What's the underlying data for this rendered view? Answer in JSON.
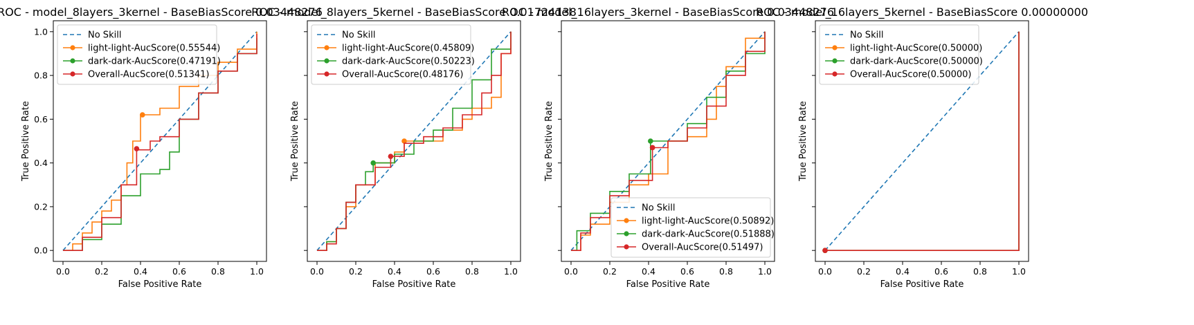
{
  "chart_data": [
    {
      "type": "line",
      "title": "ROC - model_8layers_3kernel - BaseBiasScore 0.03448276",
      "xlabel": "False Positive Rate",
      "ylabel": "True Positive Rate",
      "xlim": [
        -0.05,
        1.05
      ],
      "ylim": [
        -0.05,
        1.05
      ],
      "xticks": [
        "0.0",
        "0.2",
        "0.4",
        "0.6",
        "0.8",
        "1.0"
      ],
      "yticks": [
        "0.0",
        "0.2",
        "0.4",
        "0.6",
        "0.8",
        "1.0"
      ],
      "show_ytick_labels": true,
      "legend_position": "upper-left",
      "series": [
        {
          "name": "No Skill",
          "style": "dashed",
          "color": "#1f77b4",
          "x": [
            0,
            1
          ],
          "y": [
            0,
            1
          ]
        },
        {
          "name": "light-light-AucScore(0.55544)",
          "color": "#ff7f0e",
          "x": [
            0,
            0.05,
            0.1,
            0.15,
            0.2,
            0.25,
            0.3,
            0.33,
            0.36,
            0.4,
            0.5,
            0.6,
            0.7,
            0.8,
            0.9,
            1.0
          ],
          "y": [
            0,
            0.03,
            0.08,
            0.13,
            0.18,
            0.23,
            0.3,
            0.4,
            0.5,
            0.62,
            0.65,
            0.75,
            0.8,
            0.86,
            0.92,
            1.0
          ],
          "marker": {
            "x": 0.41,
            "y": 0.62
          }
        },
        {
          "name": "dark-dark-AucScore(0.47191)",
          "color": "#2ca02c",
          "x": [
            0,
            0.1,
            0.2,
            0.3,
            0.4,
            0.5,
            0.55,
            0.6,
            0.7,
            0.8,
            0.9,
            1.0
          ],
          "y": [
            0,
            0.05,
            0.12,
            0.25,
            0.35,
            0.37,
            0.45,
            0.6,
            0.72,
            0.82,
            0.9,
            0.97
          ],
          "marker": null
        },
        {
          "name": "Overall-AucScore(0.51341)",
          "color": "#d62728",
          "x": [
            0,
            0.1,
            0.2,
            0.3,
            0.38,
            0.45,
            0.5,
            0.6,
            0.7,
            0.8,
            0.9,
            1.0
          ],
          "y": [
            0,
            0.06,
            0.15,
            0.3,
            0.46,
            0.5,
            0.52,
            0.6,
            0.72,
            0.82,
            0.9,
            0.99
          ],
          "marker": {
            "x": 0.38,
            "y": 0.465
          }
        }
      ]
    },
    {
      "type": "line",
      "title": "ROC - model_8layers_5kernel - BaseBiasScore 0.01724138",
      "xlabel": "False Positive Rate",
      "ylabel": "True Positive Rate",
      "xlim": [
        -0.05,
        1.05
      ],
      "ylim": [
        -0.05,
        1.05
      ],
      "xticks": [
        "0.0",
        "0.2",
        "0.4",
        "0.6",
        "0.8",
        "1.0"
      ],
      "yticks": [
        "0.0",
        "0.2",
        "0.4",
        "0.6",
        "0.8",
        "1.0"
      ],
      "show_ytick_labels": false,
      "legend_position": "upper-left",
      "series": [
        {
          "name": "No Skill",
          "style": "dashed",
          "color": "#1f77b4",
          "x": [
            0,
            1
          ],
          "y": [
            0,
            1
          ]
        },
        {
          "name": "light-light-AucScore(0.45809)",
          "color": "#ff7f0e",
          "x": [
            0,
            0.05,
            0.1,
            0.15,
            0.2,
            0.3,
            0.4,
            0.45,
            0.55,
            0.65,
            0.75,
            0.8,
            0.9,
            0.95,
            1.0
          ],
          "y": [
            0,
            0.04,
            0.1,
            0.2,
            0.3,
            0.4,
            0.45,
            0.5,
            0.5,
            0.55,
            0.6,
            0.65,
            0.7,
            0.9,
            1.0
          ],
          "marker": {
            "x": 0.45,
            "y": 0.5
          }
        },
        {
          "name": "dark-dark-AucScore(0.50223)",
          "color": "#2ca02c",
          "x": [
            0,
            0.05,
            0.1,
            0.15,
            0.2,
            0.25,
            0.29,
            0.4,
            0.5,
            0.6,
            0.7,
            0.8,
            0.9,
            1.0
          ],
          "y": [
            0,
            0.04,
            0.1,
            0.22,
            0.3,
            0.36,
            0.4,
            0.44,
            0.5,
            0.55,
            0.65,
            0.78,
            0.92,
            1.0
          ],
          "marker": {
            "x": 0.29,
            "y": 0.4
          }
        },
        {
          "name": "Overall-AucScore(0.48176)",
          "color": "#d62728",
          "x": [
            0,
            0.05,
            0.1,
            0.15,
            0.2,
            0.3,
            0.38,
            0.45,
            0.55,
            0.65,
            0.75,
            0.85,
            0.9,
            0.95,
            1.0
          ],
          "y": [
            0,
            0.03,
            0.1,
            0.22,
            0.3,
            0.38,
            0.43,
            0.49,
            0.52,
            0.56,
            0.62,
            0.72,
            0.8,
            0.9,
            1.0
          ],
          "marker": {
            "x": 0.38,
            "y": 0.43
          }
        }
      ]
    },
    {
      "type": "line",
      "title": "ROC - model_16layers_3kernel - BaseBiasScore 0.03448276",
      "xlabel": "False Positive Rate",
      "ylabel": "True Positive Rate",
      "xlim": [
        -0.05,
        1.05
      ],
      "ylim": [
        -0.05,
        1.05
      ],
      "xticks": [
        "0.0",
        "0.2",
        "0.4",
        "0.6",
        "0.8",
        "1.0"
      ],
      "yticks": [
        "0.0",
        "0.2",
        "0.4",
        "0.6",
        "0.8",
        "1.0"
      ],
      "show_ytick_labels": false,
      "legend_position": "lower-right",
      "series": [
        {
          "name": "No Skill",
          "style": "dashed",
          "color": "#1f77b4",
          "x": [
            0,
            1
          ],
          "y": [
            0,
            1
          ]
        },
        {
          "name": "light-light-AucScore(0.50892)",
          "color": "#ff7f0e",
          "x": [
            0,
            0.05,
            0.1,
            0.2,
            0.3,
            0.4,
            0.5,
            0.6,
            0.7,
            0.75,
            0.8,
            0.85,
            0.9,
            1.0
          ],
          "y": [
            0,
            0.07,
            0.12,
            0.22,
            0.3,
            0.35,
            0.5,
            0.52,
            0.6,
            0.75,
            0.84,
            0.84,
            0.97,
            1.0
          ],
          "marker": {
            "x": 0.42,
            "y": 0.47
          }
        },
        {
          "name": "dark-dark-AucScore(0.51888)",
          "color": "#2ca02c",
          "x": [
            0,
            0.03,
            0.1,
            0.2,
            0.3,
            0.41,
            0.5,
            0.6,
            0.7,
            0.8,
            0.9,
            1.0
          ],
          "y": [
            0,
            0.09,
            0.17,
            0.27,
            0.35,
            0.5,
            0.5,
            0.58,
            0.7,
            0.82,
            0.9,
            1.0
          ],
          "marker": {
            "x": 0.41,
            "y": 0.5
          }
        },
        {
          "name": "Overall-AucScore(0.51497)",
          "color": "#d62728",
          "x": [
            0,
            0.05,
            0.1,
            0.2,
            0.3,
            0.42,
            0.5,
            0.6,
            0.7,
            0.8,
            0.9,
            1.0
          ],
          "y": [
            0,
            0.08,
            0.15,
            0.25,
            0.32,
            0.47,
            0.5,
            0.56,
            0.66,
            0.8,
            0.91,
            1.0
          ],
          "marker": {
            "x": 0.42,
            "y": 0.47
          }
        }
      ]
    },
    {
      "type": "line",
      "title": "ROC - model_16layers_5kernel - BaseBiasScore 0.00000000",
      "xlabel": "False Positive Rate",
      "ylabel": "True Positive Rate",
      "xlim": [
        -0.05,
        1.05
      ],
      "ylim": [
        -0.05,
        1.05
      ],
      "xticks": [
        "0.0",
        "0.2",
        "0.4",
        "0.6",
        "0.8",
        "1.0"
      ],
      "yticks": [
        "0.0",
        "0.2",
        "0.4",
        "0.6",
        "0.8",
        "1.0"
      ],
      "show_ytick_labels": false,
      "legend_position": "upper-left",
      "series": [
        {
          "name": "No Skill",
          "style": "dashed",
          "color": "#1f77b4",
          "x": [
            0,
            1
          ],
          "y": [
            0,
            1
          ]
        },
        {
          "name": "light-light-AucScore(0.50000)",
          "color": "#ff7f0e",
          "x": [
            0,
            1
          ],
          "y": [
            0,
            1
          ],
          "marker": {
            "x": 0,
            "y": 0
          }
        },
        {
          "name": "dark-dark-AucScore(0.50000)",
          "color": "#2ca02c",
          "x": [
            0,
            1
          ],
          "y": [
            0,
            1
          ],
          "marker": {
            "x": 0,
            "y": 0
          }
        },
        {
          "name": "Overall-AucScore(0.50000)",
          "color": "#d62728",
          "x": [
            0,
            1
          ],
          "y": [
            0,
            1
          ],
          "marker": {
            "x": 0,
            "y": 0
          }
        }
      ]
    }
  ]
}
